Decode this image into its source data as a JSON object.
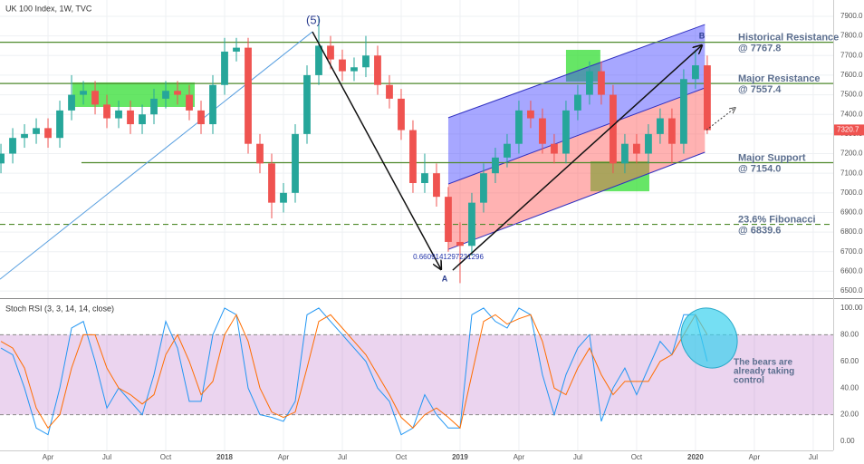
{
  "chart_data": [
    {
      "type": "candlestick",
      "title": "UK 100 Index, 1W, TVC",
      "x": [
        2017.05,
        2017.1,
        2017.15,
        2017.2,
        2017.25,
        2017.3,
        2017.35,
        2017.4,
        2017.45,
        2017.5,
        2017.55,
        2017.6,
        2017.65,
        2017.7,
        2017.75,
        2017.8,
        2017.85,
        2017.9,
        2017.95,
        2018.0,
        2018.05,
        2018.1,
        2018.15,
        2018.2,
        2018.25,
        2018.3,
        2018.35,
        2018.4,
        2018.45,
        2018.5,
        2018.55,
        2018.6,
        2018.65,
        2018.7,
        2018.75,
        2018.8,
        2018.85,
        2018.9,
        2018.95,
        2019.0,
        2019.05,
        2019.1,
        2019.15,
        2019.2,
        2019.25,
        2019.3,
        2019.35,
        2019.4,
        2019.45,
        2019.5,
        2019.55,
        2019.6,
        2019.65,
        2019.7,
        2019.75,
        2019.8,
        2019.85,
        2019.9,
        2019.95,
        2020.0,
        2020.05
      ],
      "open": [
        7150,
        7200,
        7280,
        7300,
        7330,
        7280,
        7420,
        7500,
        7520,
        7450,
        7380,
        7420,
        7350,
        7400,
        7480,
        7520,
        7500,
        7420,
        7350,
        7550,
        7720,
        7740,
        7250,
        7150,
        6950,
        7000,
        7300,
        7600,
        7750,
        7680,
        7620,
        7640,
        7700,
        7550,
        7480,
        7320,
        7050,
        7100,
        6980,
        6750,
        6730,
        6950,
        7100,
        7180,
        7250,
        7420,
        7380,
        7250,
        7200,
        7420,
        7500,
        7620,
        7500,
        7150,
        7250,
        7200,
        7300,
        7380,
        7250,
        7580,
        7650
      ],
      "high": [
        7250,
        7330,
        7350,
        7380,
        7380,
        7470,
        7600,
        7570,
        7570,
        7500,
        7470,
        7470,
        7450,
        7530,
        7570,
        7570,
        7550,
        7470,
        7600,
        7790,
        7790,
        7790,
        7300,
        7200,
        7050,
        7350,
        7650,
        7900,
        7800,
        7730,
        7690,
        7800,
        7750,
        7600,
        7530,
        7370,
        7200,
        7150,
        7030,
        6850,
        7000,
        7150,
        7230,
        7300,
        7470,
        7470,
        7430,
        7300,
        7470,
        7550,
        7670,
        7670,
        7550,
        7300,
        7300,
        7350,
        7430,
        7430,
        7630,
        7730,
        7700
      ],
      "low": [
        7100,
        7150,
        7230,
        7250,
        7230,
        7230,
        7370,
        7450,
        7400,
        7330,
        7330,
        7300,
        7300,
        7350,
        7430,
        7450,
        7370,
        7300,
        7300,
        7500,
        7670,
        7200,
        7100,
        6870,
        6900,
        6950,
        7250,
        7550,
        7630,
        7570,
        7570,
        7590,
        7500,
        7430,
        7270,
        7000,
        7000,
        6930,
        6700,
        6540,
        6680,
        6900,
        7050,
        7130,
        7200,
        7330,
        7200,
        7150,
        7150,
        7370,
        7450,
        7450,
        7100,
        7100,
        7150,
        7150,
        7250,
        7150,
        7200,
        7530,
        7300
      ],
      "close": [
        7200,
        7280,
        7300,
        7330,
        7280,
        7420,
        7500,
        7520,
        7450,
        7380,
        7420,
        7350,
        7400,
        7480,
        7520,
        7500,
        7420,
        7350,
        7550,
        7720,
        7740,
        7250,
        7150,
        6950,
        7000,
        7300,
        7600,
        7750,
        7680,
        7620,
        7640,
        7700,
        7550,
        7480,
        7320,
        7050,
        7100,
        6980,
        6750,
        6730,
        6950,
        7100,
        7180,
        7250,
        7420,
        7380,
        7250,
        7200,
        7420,
        7500,
        7620,
        7500,
        7150,
        7250,
        7200,
        7300,
        7380,
        7250,
        7580,
        7650,
        7320
      ],
      "up_color": "#26a69a",
      "down_color": "#ef5350",
      "xlim": [
        2017.046,
        2020.585
      ],
      "xticks": [
        {
          "value": 2017.25,
          "label": "Apr"
        },
        {
          "value": 2017.5,
          "label": "Jul"
        },
        {
          "value": 2017.75,
          "label": "Oct"
        },
        2018,
        {
          "value": 2018.25,
          "label": "Apr"
        },
        {
          "value": 2018.5,
          "label": "Jul"
        },
        {
          "value": 2018.75,
          "label": "Oct"
        },
        2019,
        {
          "value": 2019.25,
          "label": "Apr"
        },
        {
          "value": 2019.5,
          "label": "Jul"
        },
        {
          "value": 2019.75,
          "label": "Oct"
        },
        2020,
        {
          "value": 2020.25,
          "label": "Apr"
        },
        {
          "value": 2020.5,
          "label": "Jul"
        }
      ],
      "ylim": [
        6468,
        7983
      ],
      "yticks": [
        {
          "value": 6500,
          "label": "6500.0"
        },
        {
          "value": 6600,
          "label": "6600.0"
        },
        {
          "value": 6700,
          "label": "6700.0"
        },
        {
          "value": 6800,
          "label": "6800.0"
        },
        {
          "value": 6900,
          "label": "6900.0"
        },
        {
          "value": 7000,
          "label": "7000.0"
        },
        {
          "value": 7100,
          "label": "7100.0"
        },
        {
          "value": 7200,
          "label": "7200.0"
        },
        {
          "value": 7300,
          "label": "7300.0"
        },
        {
          "value": 7400,
          "label": "7400.0"
        },
        {
          "value": 7500,
          "label": "7500.0"
        },
        {
          "value": 7600,
          "label": "7600.0"
        },
        {
          "value": 7700,
          "label": "7700.0"
        },
        {
          "value": 7800,
          "label": "7800.0"
        },
        {
          "value": 7900,
          "label": "7900.0"
        }
      ],
      "grid": true,
      "last_price": 7320.7,
      "levels": [
        {
          "name": "Historical Resistance",
          "value": 7767.8,
          "value_label": "@ 7767.8",
          "color": "#4f8a2c"
        },
        {
          "name": "Major Resistance",
          "value": 7557.4,
          "value_label": "@ 7557.4",
          "color": "#4f8a2c"
        },
        {
          "name": "Major Support",
          "value": 7154.0,
          "value_label": "@ 7154.0",
          "color": "#4f8a2c",
          "x_start": 2017.392
        },
        {
          "name": "23.6% Fibonacci",
          "value": 6839.6,
          "value_label": "@ 6839.6",
          "color": "#4f8a2c",
          "dashed": true
        }
      ],
      "channel": {
        "x": [
          2018.95,
          2020.04
        ],
        "upper": [
          7383,
          7858
        ],
        "middle": [
          7045,
          7535
        ],
        "lower": [
          6712,
          7207
        ]
      },
      "trendline": {
        "x": [
          2017.046,
          2018.373
        ],
        "y": [
          6560,
          7821
        ]
      },
      "arrows": [
        {
          "x": [
            2018.373,
            2018.919
          ],
          "y": [
            7821,
            6611
          ]
        },
        {
          "x": [
            2018.969,
            2020.027
          ],
          "y": [
            6606,
            7752
          ]
        },
        {
          "x": [
            2020.046,
            2020.169
          ],
          "y": [
            7320,
            7434
          ],
          "dotted": true
        }
      ],
      "zones": [
        {
          "x": [
            2017.354,
            2017.873
          ],
          "y": [
            7438,
            7563
          ]
        },
        {
          "x": [
            2019.45,
            2019.596
          ],
          "y": [
            7567,
            7729
          ]
        },
        {
          "x": [
            2019.554,
            2019.804
          ],
          "y": [
            7008,
            7161
          ]
        }
      ],
      "annotations": [
        "(5)",
        "A",
        "B",
        "0.6609141297231296"
      ]
    },
    {
      "type": "line",
      "title": "Stoch RSI (3, 3, 14, 14, close)",
      "series": [
        {
          "color": "#2196f3",
          "values": [
            70,
            65,
            40,
            10,
            5,
            40,
            85,
            90,
            60,
            25,
            40,
            30,
            20,
            50,
            90,
            70,
            30,
            30,
            80,
            100,
            95,
            40,
            20,
            18,
            15,
            30,
            95,
            100,
            90,
            80,
            70,
            60,
            40,
            30,
            5,
            10,
            35,
            20,
            10,
            10,
            95,
            100,
            90,
            85,
            100,
            95,
            50,
            20,
            50,
            70,
            80,
            15,
            40,
            55,
            35,
            55,
            75,
            65,
            95,
            95,
            60
          ]
        },
        {
          "color": "#ff6d00",
          "values": [
            75,
            70,
            55,
            25,
            10,
            20,
            55,
            80,
            80,
            55,
            40,
            35,
            28,
            35,
            65,
            80,
            60,
            35,
            45,
            80,
            95,
            75,
            40,
            22,
            18,
            22,
            55,
            90,
            95,
            85,
            75,
            65,
            50,
            35,
            18,
            10,
            20,
            25,
            18,
            10,
            50,
            90,
            95,
            88,
            92,
            95,
            75,
            40,
            35,
            55,
            70,
            50,
            35,
            45,
            45,
            45,
            60,
            65,
            80,
            95,
            80
          ]
        }
      ],
      "ylim": [
        -6.8,
        105.4
      ],
      "yticks": [
        {
          "value": 0,
          "label": "0.00"
        },
        {
          "value": 20,
          "label": "20.00"
        },
        {
          "value": 40,
          "label": "40.00"
        },
        {
          "value": 60,
          "label": "60.00"
        },
        {
          "value": 80,
          "label": "80.00"
        },
        {
          "value": 100,
          "label": "100.00"
        }
      ],
      "bands": [
        20,
        80
      ],
      "note": [
        "The bears are",
        "already taking",
        "control"
      ]
    }
  ]
}
